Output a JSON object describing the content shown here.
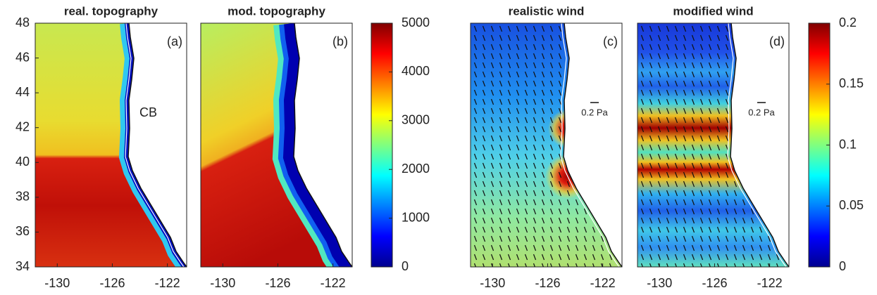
{
  "chart_data": [
    {
      "type": "map",
      "title": "real. topography",
      "panel_label": "(a)",
      "annotation": "CB",
      "xlim": [
        -131.6,
        -120.6
      ],
      "xticks": [
        -130,
        -126,
        -122
      ],
      "ylim": [
        34,
        48
      ],
      "yticks": [
        34,
        36,
        38,
        40,
        42,
        44,
        46,
        48
      ]
    },
    {
      "type": "map",
      "title": "mod. topography",
      "panel_label": "(b)",
      "xlim": [
        -131.6,
        -120.6
      ],
      "xticks": [
        -130,
        -126,
        -122
      ],
      "ylim": [
        34,
        48
      ]
    },
    {
      "type": "colorbar",
      "colormap": "jet",
      "ylim": [
        0,
        5000
      ],
      "yticks": [
        0,
        1000,
        2000,
        3000,
        4000,
        5000
      ]
    },
    {
      "type": "map",
      "title": "realistic wind",
      "panel_label": "(c)",
      "scale_label": "0.2 Pa",
      "xlim": [
        -131.6,
        -120.6
      ],
      "xticks": [
        -130,
        -126,
        -122
      ],
      "ylim": [
        34,
        48
      ]
    },
    {
      "type": "map",
      "title": "modified wind",
      "panel_label": "(d)",
      "scale_label": "0.2 Pa",
      "xlim": [
        -131.6,
        -120.6
      ],
      "xticks": [
        -130,
        -126,
        -122
      ],
      "ylim": [
        34,
        48
      ]
    },
    {
      "type": "colorbar",
      "colormap": "jet",
      "ylim": [
        0,
        0.2
      ],
      "yticks": [
        0,
        0.05,
        0.1,
        0.15,
        0.2
      ]
    }
  ]
}
